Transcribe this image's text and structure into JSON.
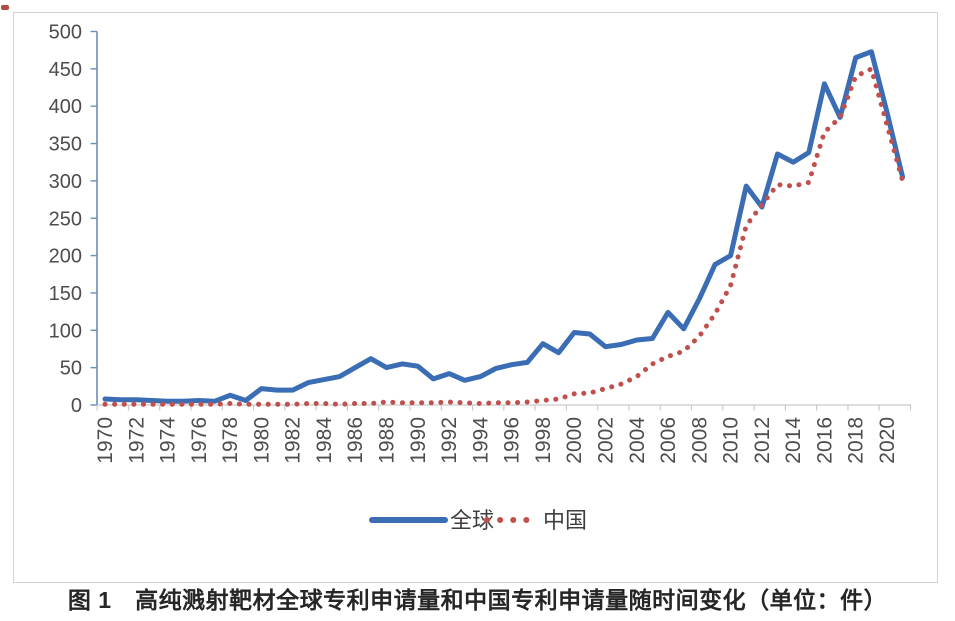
{
  "figure": {
    "caption": "图 1　高纯溅射靶材全球专利申请量和中国专利申请量随时间变化（单位：件）"
  },
  "legend": {
    "items": [
      {
        "label": "全球"
      },
      {
        "label": "中国"
      }
    ]
  },
  "chart_data": {
    "type": "line",
    "title": "",
    "xlabel": "",
    "ylabel": "",
    "ylim": [
      0,
      500
    ],
    "y_ticks": [
      0,
      50,
      100,
      150,
      200,
      250,
      300,
      350,
      400,
      450,
      500
    ],
    "x": [
      1970,
      1971,
      1972,
      1973,
      1974,
      1975,
      1976,
      1977,
      1978,
      1979,
      1980,
      1981,
      1982,
      1983,
      1984,
      1985,
      1986,
      1987,
      1988,
      1989,
      1990,
      1991,
      1992,
      1993,
      1994,
      1995,
      1996,
      1997,
      1998,
      1999,
      2000,
      2001,
      2002,
      2003,
      2004,
      2005,
      2006,
      2007,
      2008,
      2009,
      2010,
      2011,
      2012,
      2013,
      2014,
      2015,
      2016,
      2017,
      2018,
      2019,
      2020,
      2021
    ],
    "x_tick_labels": [
      "1970",
      "1972",
      "1974",
      "1976",
      "1978",
      "1980",
      "1982",
      "1984",
      "1986",
      "1988",
      "1990",
      "1992",
      "1994",
      "1996",
      "1998",
      "2000",
      "2002",
      "2004",
      "2006",
      "2008",
      "2010",
      "2012",
      "2014",
      "2016",
      "2018",
      "2020"
    ],
    "x_tick_interval": 2,
    "grid": false,
    "legend_position": "bottom-center",
    "series": [
      {
        "name": "全球",
        "color": "#3a6db4",
        "line_style": "solid",
        "values": [
          8,
          7,
          7,
          6,
          5,
          5,
          6,
          5,
          13,
          6,
          22,
          20,
          20,
          30,
          34,
          38,
          50,
          62,
          50,
          55,
          52,
          35,
          42,
          33,
          38,
          49,
          54,
          57,
          82,
          70,
          97,
          95,
          78,
          81,
          87,
          89,
          124,
          102,
          142,
          188,
          200,
          293,
          265,
          336,
          325,
          338,
          430,
          385,
          465,
          473,
          392,
          305
        ]
      },
      {
        "name": "中国",
        "color": "#c0504d",
        "line_style": "round-dot",
        "values": [
          1,
          1,
          1,
          1,
          1,
          1,
          1,
          1,
          2,
          1,
          1,
          1,
          1,
          2,
          2,
          1,
          2,
          2,
          4,
          3,
          3,
          3,
          4,
          3,
          2,
          3,
          3,
          4,
          6,
          8,
          15,
          16,
          22,
          28,
          38,
          55,
          65,
          72,
          92,
          122,
          160,
          240,
          268,
          295,
          293,
          298,
          365,
          385,
          440,
          450,
          375,
          300
        ]
      }
    ]
  },
  "colors": {
    "y_axis": "#6e8cbe",
    "x_axis": "#c9c9c9",
    "tick_label": "#4d4d4d",
    "legend_text": "#3f3f3f",
    "caption_text": "#262626"
  }
}
